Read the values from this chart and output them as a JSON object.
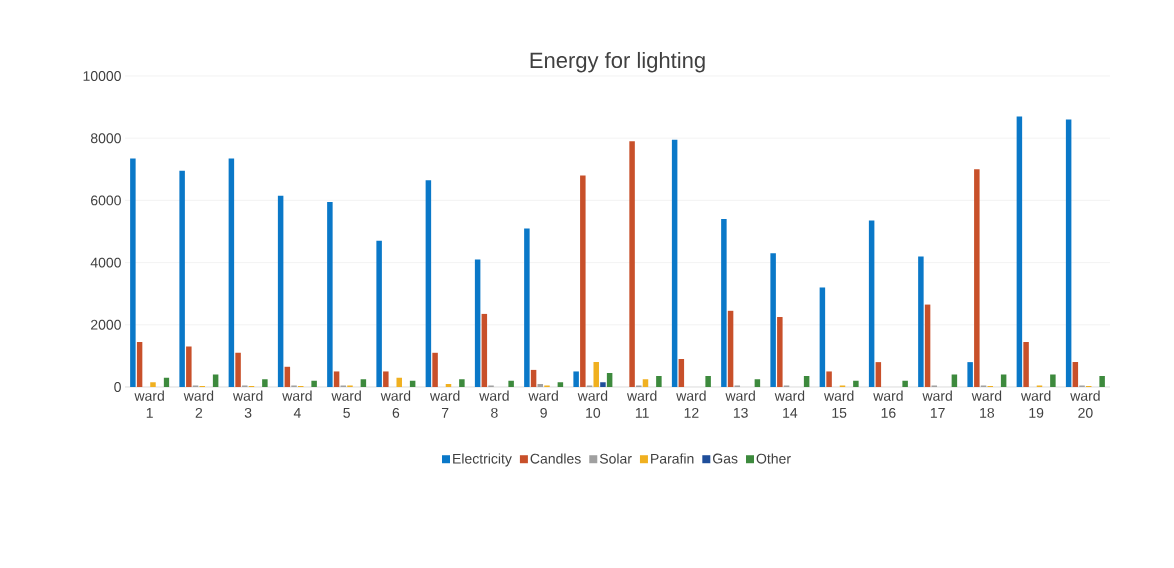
{
  "chart_data": {
    "type": "bar",
    "title": "Energy for lighting",
    "categories": [
      "ward 1",
      "ward 2",
      "ward 3",
      "ward 4",
      "ward 5",
      "ward 6",
      "ward 7",
      "ward 8",
      "ward 9",
      "ward 10",
      "ward 11",
      "ward 12",
      "ward 13",
      "ward 14",
      "ward 15",
      "ward 16",
      "ward 17",
      "ward 18",
      "ward 19",
      "ward 20"
    ],
    "series": [
      {
        "name": "Electricity",
        "color": "#0a78c8",
        "values": [
          7350,
          6950,
          7350,
          6150,
          5950,
          4700,
          6650,
          4100,
          5100,
          500,
          0,
          7950,
          5400,
          4300,
          3200,
          5350,
          4200,
          800,
          8700,
          8600
        ]
      },
      {
        "name": "Candles",
        "color": "#c8502a",
        "values": [
          1450,
          1300,
          1100,
          650,
          500,
          500,
          1100,
          2350,
          550,
          6800,
          7900,
          900,
          2450,
          2250,
          500,
          800,
          2650,
          7000,
          1450,
          800
        ]
      },
      {
        "name": "Solar",
        "color": "#a0a0a0",
        "values": [
          0,
          50,
          50,
          50,
          50,
          0,
          0,
          50,
          100,
          50,
          50,
          0,
          50,
          50,
          0,
          0,
          50,
          50,
          0,
          50
        ]
      },
      {
        "name": "Parafin",
        "color": "#f0b020",
        "values": [
          150,
          30,
          30,
          30,
          50,
          300,
          100,
          0,
          50,
          800,
          250,
          0,
          0,
          0,
          50,
          0,
          0,
          30,
          50,
          30
        ]
      },
      {
        "name": "Gas",
        "color": "#1f4e9a",
        "values": [
          0,
          0,
          0,
          0,
          0,
          0,
          0,
          0,
          0,
          150,
          0,
          0,
          0,
          0,
          0,
          0,
          0,
          0,
          0,
          0
        ]
      },
      {
        "name": "Other",
        "color": "#3d8a3d",
        "values": [
          300,
          400,
          250,
          200,
          250,
          200,
          250,
          200,
          150,
          450,
          350,
          350,
          250,
          350,
          200,
          200,
          400,
          400,
          400,
          350
        ]
      }
    ],
    "ylim": [
      0,
      10000
    ],
    "yticks": [
      0,
      2000,
      4000,
      6000,
      8000,
      10000
    ],
    "grid": "y",
    "legend": "bottom"
  }
}
